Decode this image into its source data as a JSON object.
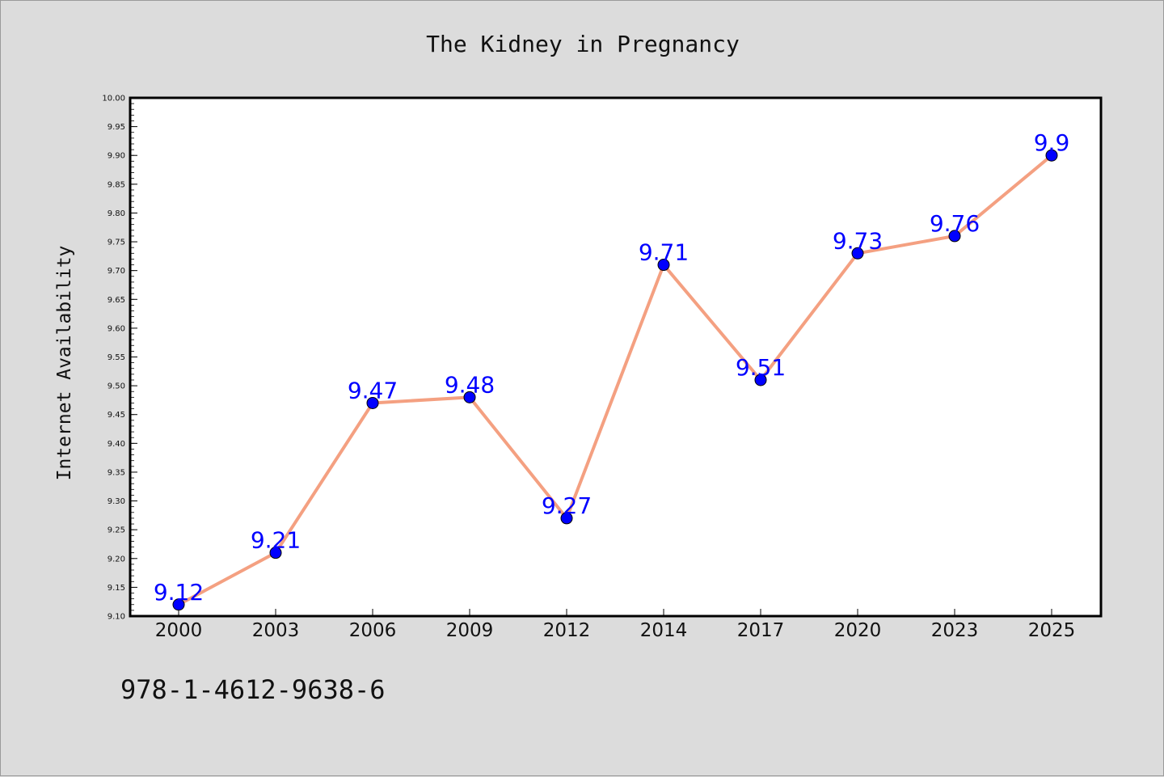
{
  "chart_data": {
    "type": "line",
    "title": "The Kidney in Pregnancy",
    "xlabel": "",
    "ylabel": "Internet Availability",
    "categories": [
      "2000",
      "2003",
      "2006",
      "2009",
      "2012",
      "2014",
      "2017",
      "2020",
      "2023",
      "2025"
    ],
    "series": [
      {
        "values": [
          9.12,
          9.21,
          9.47,
          9.48,
          9.27,
          9.71,
          9.51,
          9.73,
          9.76,
          9.9
        ],
        "labels": [
          "9.12",
          "9.21",
          "9.47",
          "9.48",
          "9.27",
          "9.71",
          "9.51",
          "9.73",
          "9.76",
          "9.9"
        ],
        "line_color": "#f4a081",
        "marker_color": "#0000ff",
        "label_color": "#0000ff"
      }
    ],
    "ylim": [
      9.1,
      10.0
    ],
    "yticks": [
      "9.10",
      "9.15",
      "9.20",
      "9.25",
      "9.30",
      "9.35",
      "9.40",
      "9.45",
      "9.50",
      "9.55",
      "9.60",
      "9.65",
      "9.70",
      "9.75",
      "9.80",
      "9.85",
      "9.90",
      "9.95",
      "10.00"
    ],
    "grid": false,
    "legend": "none"
  },
  "footer": {
    "isbn": "978-1-4612-9638-6"
  }
}
